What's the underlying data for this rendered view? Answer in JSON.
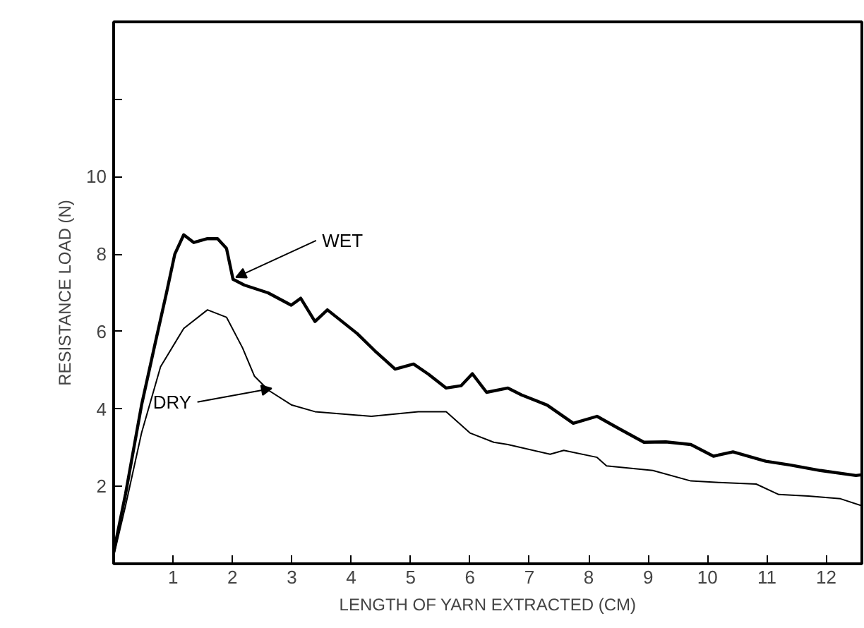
{
  "chart_data": {
    "type": "line",
    "xlabel": "LENGTH OF YARN EXTRACTED (CM)",
    "ylabel": "RESISTANCE LOAD (N)",
    "xlim": [
      0,
      12.6
    ],
    "ylim": [
      0,
      14
    ],
    "xticks": [
      1,
      2,
      3,
      4,
      5,
      6,
      7,
      8,
      9,
      10,
      11,
      12
    ],
    "yticks": [
      2,
      4,
      6,
      8,
      10,
      {
        "value": 12,
        "label": null
      }
    ],
    "grid": false,
    "marker": "none",
    "line_style": "solid",
    "series": [
      {
        "name": "WET",
        "color": "#000000",
        "x": [
          0,
          0.2,
          0.47,
          0.7,
          0.89,
          1.03,
          1.18,
          1.35,
          1.58,
          1.75,
          1.9,
          2.01,
          2.2,
          2.6,
          2.99,
          3.15,
          3.39,
          3.6,
          4.1,
          4.4,
          4.74,
          5.05,
          5.3,
          5.6,
          5.85,
          6.04,
          6.28,
          6.64,
          6.87,
          7.3,
          7.74,
          8.14,
          8.5,
          8.93,
          9.3,
          9.72,
          10.1,
          10.43,
          10.98,
          11.4,
          11.9,
          12.5,
          12.6
        ],
        "values": [
          0.3,
          1.8,
          4.1,
          5.7,
          7.0,
          8.0,
          8.5,
          8.3,
          8.4,
          8.4,
          8.15,
          7.35,
          7.2,
          7.0,
          6.68,
          6.86,
          6.26,
          6.56,
          5.95,
          5.5,
          5.03,
          5.16,
          4.9,
          4.54,
          4.6,
          4.91,
          4.43,
          4.54,
          4.36,
          4.1,
          3.63,
          3.81,
          3.5,
          3.14,
          3.15,
          3.08,
          2.78,
          2.89,
          2.65,
          2.55,
          2.41,
          2.28,
          2.3
        ]
      },
      {
        "name": "DRY",
        "color": "#000000",
        "x": [
          0,
          0.2,
          0.47,
          0.79,
          1.18,
          1.58,
          1.9,
          2.17,
          2.37,
          2.61,
          3.0,
          3.39,
          4.34,
          5.13,
          5.6,
          6.0,
          6.4,
          6.64,
          7.35,
          7.58,
          8.14,
          8.3,
          9.08,
          9.72,
          10.19,
          10.82,
          11.2,
          11.7,
          12.24,
          12.6
        ],
        "values": [
          0.2,
          1.5,
          3.38,
          5.09,
          6.08,
          6.56,
          6.37,
          5.58,
          4.85,
          4.48,
          4.1,
          3.93,
          3.81,
          3.93,
          3.93,
          3.38,
          3.14,
          3.08,
          2.83,
          2.93,
          2.75,
          2.53,
          2.41,
          2.14,
          2.1,
          2.06,
          1.79,
          1.75,
          1.68,
          1.5
        ]
      }
    ]
  }
}
